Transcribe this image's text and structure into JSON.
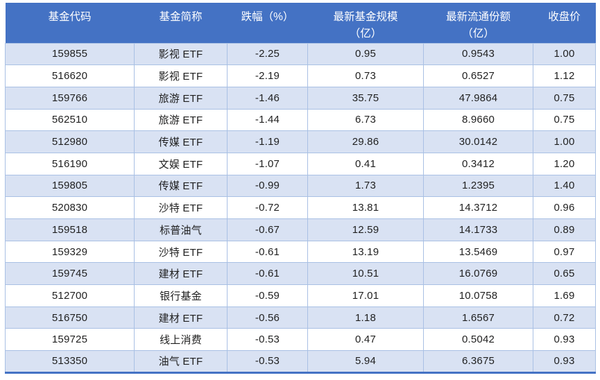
{
  "table": {
    "columns": [
      {
        "label": "基金代码"
      },
      {
        "label": "基金简称"
      },
      {
        "label": "跌幅（%）"
      },
      {
        "label": "最新基金规模\n（亿）"
      },
      {
        "label": "最新流通份额\n（亿）"
      },
      {
        "label": "收盘价"
      }
    ],
    "rows": [
      [
        "159855",
        "影视 ETF",
        "-2.25",
        "0.95",
        "0.9543",
        "1.00"
      ],
      [
        "516620",
        "影视 ETF",
        "-2.19",
        "0.73",
        "0.6527",
        "1.12"
      ],
      [
        "159766",
        "旅游 ETF",
        "-1.46",
        "35.75",
        "47.9864",
        "0.75"
      ],
      [
        "562510",
        "旅游 ETF",
        "-1.44",
        "6.73",
        "8.9660",
        "0.75"
      ],
      [
        "512980",
        "传媒 ETF",
        "-1.19",
        "29.86",
        "30.0142",
        "1.00"
      ],
      [
        "516190",
        "文娱 ETF",
        "-1.07",
        "0.41",
        "0.3412",
        "1.20"
      ],
      [
        "159805",
        "传媒 ETF",
        "-0.99",
        "1.73",
        "1.2395",
        "1.40"
      ],
      [
        "520830",
        "沙特 ETF",
        "-0.72",
        "13.81",
        "14.3712",
        "0.96"
      ],
      [
        "159518",
        "标普油气",
        "-0.67",
        "12.59",
        "14.1733",
        "0.89"
      ],
      [
        "159329",
        "沙特 ETF",
        "-0.61",
        "13.19",
        "13.5469",
        "0.97"
      ],
      [
        "159745",
        "建材 ETF",
        "-0.61",
        "10.51",
        "16.0769",
        "0.65"
      ],
      [
        "512700",
        "银行基金",
        "-0.59",
        "17.01",
        "10.0758",
        "1.69"
      ],
      [
        "516750",
        "建材 ETF",
        "-0.56",
        "1.18",
        "1.6567",
        "0.72"
      ],
      [
        "159725",
        "线上消费",
        "-0.53",
        "0.47",
        "0.5042",
        "0.93"
      ],
      [
        "513350",
        "油气 ETF",
        "-0.53",
        "5.94",
        "6.3675",
        "0.93"
      ]
    ]
  },
  "colors": {
    "header_bg": "#4472C4",
    "header_text": "#FFFFFF",
    "row_alt_bg": "#D9E2F3",
    "row_bg": "#FFFFFF",
    "cell_border": "#A9C0E4",
    "table_bottom_border": "#4472C4",
    "body_text": "#1F1F1F"
  }
}
